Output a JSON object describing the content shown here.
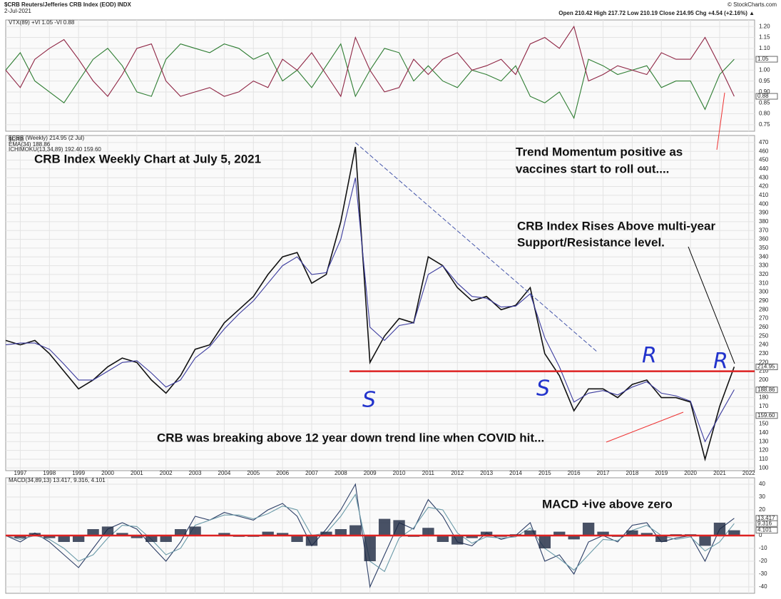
{
  "header": {
    "symbol": "$CRB Reuters/Jefferies CRB Index (EOD) INDX",
    "date": "2-Jul-2021",
    "source": "© StockCharts.com",
    "ohlc": "Open 210.42  High 217.72  Low 210.19  Close 214.95  Chg +4.54 (+2.16%) ▲"
  },
  "chart_data": [
    {
      "type": "line",
      "legend_label": "VTX(89) +VI 1.05 -VI 0.88",
      "x": [
        1996.5,
        1997,
        1997.5,
        1998,
        1998.5,
        1999,
        1999.5,
        2000,
        2000.5,
        2001,
        2001.5,
        2002,
        2002.5,
        2003,
        2003.5,
        2004,
        2004.5,
        2005,
        2005.5,
        2006,
        2006.5,
        2007,
        2007.5,
        2008,
        2008.5,
        2009,
        2009.5,
        2010,
        2010.5,
        2011,
        2011.5,
        2012,
        2012.5,
        2013,
        2013.5,
        2014,
        2014.5,
        2015,
        2015.5,
        2016,
        2016.5,
        2017,
        2017.5,
        2018,
        2018.5,
        2019,
        2019.5,
        2020,
        2020.5,
        2021,
        2021.5
      ],
      "xlim": [
        1996.5,
        2022.2
      ],
      "series": [
        {
          "name": "+VI",
          "color": "#2e7d32",
          "values": [
            1,
            1.08,
            0.95,
            0.9,
            0.85,
            0.95,
            1.05,
            1.1,
            1.02,
            0.9,
            0.88,
            1.05,
            1.12,
            1.1,
            1.08,
            1.12,
            1.1,
            1.05,
            1.08,
            0.95,
            1,
            0.92,
            1.02,
            1.12,
            0.88,
            1,
            1.1,
            1.08,
            0.95,
            1.02,
            0.95,
            0.92,
            1,
            0.98,
            0.95,
            1.02,
            0.88,
            0.85,
            0.9,
            0.78,
            1.05,
            1.02,
            0.98,
            1,
            1.02,
            0.92,
            0.95,
            0.95,
            0.82,
            0.98,
            1.05
          ]
        },
        {
          "name": "-VI",
          "color": "#8e2443",
          "values": [
            1,
            0.92,
            1.05,
            1.1,
            1.14,
            1.05,
            0.95,
            0.88,
            0.98,
            1.1,
            1.12,
            0.95,
            0.88,
            0.9,
            0.92,
            0.88,
            0.9,
            0.95,
            0.92,
            1.05,
            1,
            1.08,
            0.98,
            0.88,
            1.15,
            1,
            0.9,
            0.92,
            1.05,
            0.98,
            1.05,
            1.08,
            1,
            1.02,
            1.05,
            0.98,
            1.12,
            1.15,
            1.1,
            1.2,
            0.95,
            0.98,
            1.02,
            1,
            0.98,
            1.08,
            1.05,
            1.05,
            1.15,
            1.02,
            0.88
          ]
        }
      ],
      "ylim": [
        0.72,
        1.23
      ],
      "yticks": [
        0.75,
        {
          "value": 0.8,
          "label": "0.80"
        },
        0.85,
        {
          "value": 0.9,
          "label": "0.90"
        },
        0.95,
        {
          "value": 1,
          "label": "1.00"
        },
        1.05,
        {
          "value": 1.1,
          "label": "1.10"
        },
        1.15,
        {
          "value": 1.2,
          "label": "1.20"
        }
      ],
      "tags": [
        1.05,
        0.88
      ],
      "grid": true
    },
    {
      "type": "line",
      "title": "CRB Index Weekly Chart at July 5, 2021",
      "legend_label": "$CRB (Weekly) 214.95 (2 Jul)",
      "indicator_label": "ICHIMOKU(13,34,89) 192.40 159.60",
      "x": [
        1996.5,
        1997,
        1997.5,
        1998,
        1998.5,
        1999,
        1999.5,
        2000,
        2000.5,
        2001,
        2001.5,
        2002,
        2002.5,
        2003,
        2003.5,
        2004,
        2004.5,
        2005,
        2005.5,
        2006,
        2006.5,
        2007,
        2007.5,
        2008,
        2008.5,
        2009,
        2009.5,
        2010,
        2010.5,
        2011,
        2011.5,
        2012,
        2012.5,
        2013,
        2013.5,
        2014,
        2014.5,
        2015,
        2015.5,
        2016,
        2016.5,
        2017,
        2017.5,
        2018,
        2018.5,
        2019,
        2019.5,
        2020,
        2020.5,
        2021,
        2021.5
      ],
      "xlim": [
        1996.5,
        2022.2
      ],
      "xticks": [
        1997,
        1998,
        1999,
        2000,
        2001,
        2002,
        2003,
        2004,
        2005,
        2006,
        2007,
        2008,
        2009,
        2010,
        2011,
        2012,
        2013,
        2014,
        2015,
        2016,
        2017,
        2018,
        2019,
        2020,
        2021,
        2022
      ],
      "series": [
        {
          "name": "$CRB",
          "color": "#111111",
          "values": [
            245,
            240,
            245,
            230,
            210,
            190,
            200,
            215,
            225,
            220,
            200,
            185,
            205,
            235,
            240,
            265,
            280,
            295,
            320,
            340,
            345,
            310,
            320,
            380,
            465,
            220,
            250,
            270,
            265,
            340,
            330,
            305,
            290,
            295,
            280,
            285,
            305,
            230,
            205,
            165,
            190,
            190,
            180,
            195,
            200,
            180,
            180,
            175,
            110,
            170,
            215
          ]
        },
        {
          "name": "EMA(34) 188.86",
          "color": "#3b3b9e",
          "values": [
            240,
            242,
            242,
            235,
            218,
            200,
            200,
            210,
            220,
            222,
            208,
            192,
            200,
            225,
            238,
            258,
            275,
            290,
            310,
            330,
            340,
            320,
            322,
            360,
            430,
            260,
            245,
            262,
            265,
            320,
            330,
            310,
            295,
            293,
            283,
            284,
            298,
            248,
            215,
            175,
            185,
            188,
            183,
            192,
            198,
            185,
            182,
            176,
            130,
            160,
            189
          ]
        }
      ],
      "ylim": [
        97,
        478
      ],
      "yticks": [
        100,
        110,
        120,
        130,
        140,
        150,
        160,
        170,
        180,
        190,
        200,
        210,
        220,
        230,
        240,
        250,
        260,
        270,
        280,
        290,
        300,
        310,
        320,
        330,
        340,
        350,
        360,
        370,
        380,
        390,
        400,
        410,
        420,
        430,
        440,
        450,
        460,
        470
      ],
      "hline": 210,
      "trendline": {
        "x": [
          2008.5,
          2016.8
        ],
        "y": [
          470,
          232
        ]
      },
      "tags": [
        214.95,
        188.86,
        {
          "value": 159.6,
          "label": "159.60"
        }
      ],
      "grid": true,
      "annotations": [
        "Trend Momentum positive as",
        "vaccines start to roll out....",
        "CRB Index Rises Above multi-year",
        "Support/Resistance level.",
        "CRB was breaking above 12 year down trend line when COVID hit...",
        "S",
        "S",
        "R",
        "R"
      ]
    },
    {
      "type": "line",
      "legend_label": "MACD(34,89,13) 13.417, 9.316, 4.101",
      "title": "MACD +ive above zero",
      "x": [
        1996.5,
        1997,
        1997.5,
        1998,
        1998.5,
        1999,
        1999.5,
        2000,
        2000.5,
        2001,
        2001.5,
        2002,
        2002.5,
        2003,
        2003.5,
        2004,
        2004.5,
        2005,
        2005.5,
        2006,
        2006.5,
        2007,
        2007.5,
        2008,
        2008.5,
        2009,
        2009.5,
        2010,
        2010.5,
        2011,
        2011.5,
        2012,
        2012.5,
        2013,
        2013.5,
        2014,
        2014.5,
        2015,
        2015.5,
        2016,
        2016.5,
        2017,
        2017.5,
        2018,
        2018.5,
        2019,
        2019.5,
        2020,
        2020.5,
        2021,
        2021.5
      ],
      "xlim": [
        1996.5,
        2022.2
      ],
      "series": [
        {
          "name": "MACD",
          "color": "#2c3e66",
          "values": [
            0,
            -5,
            2,
            -5,
            -15,
            -25,
            -10,
            5,
            10,
            5,
            -8,
            -20,
            -5,
            15,
            12,
            18,
            15,
            12,
            20,
            25,
            15,
            -8,
            5,
            20,
            40,
            -40,
            -15,
            10,
            5,
            28,
            15,
            -5,
            -8,
            2,
            -3,
            0,
            10,
            -20,
            -15,
            -30,
            -5,
            0,
            -5,
            8,
            10,
            -5,
            -2,
            0,
            -20,
            5,
            13.417
          ]
        },
        {
          "name": "Signal",
          "color": "#6a9aa8",
          "values": [
            0,
            -3,
            0,
            -3,
            -10,
            -20,
            -15,
            -2,
            8,
            7,
            -3,
            -15,
            -10,
            8,
            12,
            16,
            16,
            13,
            17,
            23,
            20,
            0,
            2,
            15,
            32,
            -20,
            -28,
            -2,
            6,
            22,
            20,
            2,
            -6,
            -1,
            -2,
            -1,
            6,
            -10,
            -18,
            -27,
            -15,
            -3,
            -4,
            4,
            8,
            0,
            -3,
            -1,
            -12,
            -5,
            9.316
          ]
        },
        {
          "name": "Histogram",
          "color": "#1b2740",
          "values": [
            0,
            -2,
            2,
            -2,
            -5,
            -5,
            5,
            7,
            2,
            -2,
            -5,
            -5,
            5,
            7,
            0,
            2,
            -1,
            -1,
            3,
            2,
            -5,
            -8,
            3,
            5,
            8,
            -20,
            13,
            12,
            -1,
            6,
            -5,
            -7,
            -2,
            3,
            -1,
            1,
            4,
            -10,
            3,
            -3,
            10,
            3,
            -1,
            4,
            2,
            -5,
            1,
            1,
            -8,
            10,
            4.101
          ]
        }
      ],
      "ylim": [
        -45,
        45
      ],
      "yticks": [
        -40,
        -30,
        -20,
        -10,
        0,
        10,
        20,
        30,
        40
      ],
      "hline": 0,
      "tags": [
        13.417,
        9.316,
        4.101
      ],
      "grid": true
    }
  ]
}
